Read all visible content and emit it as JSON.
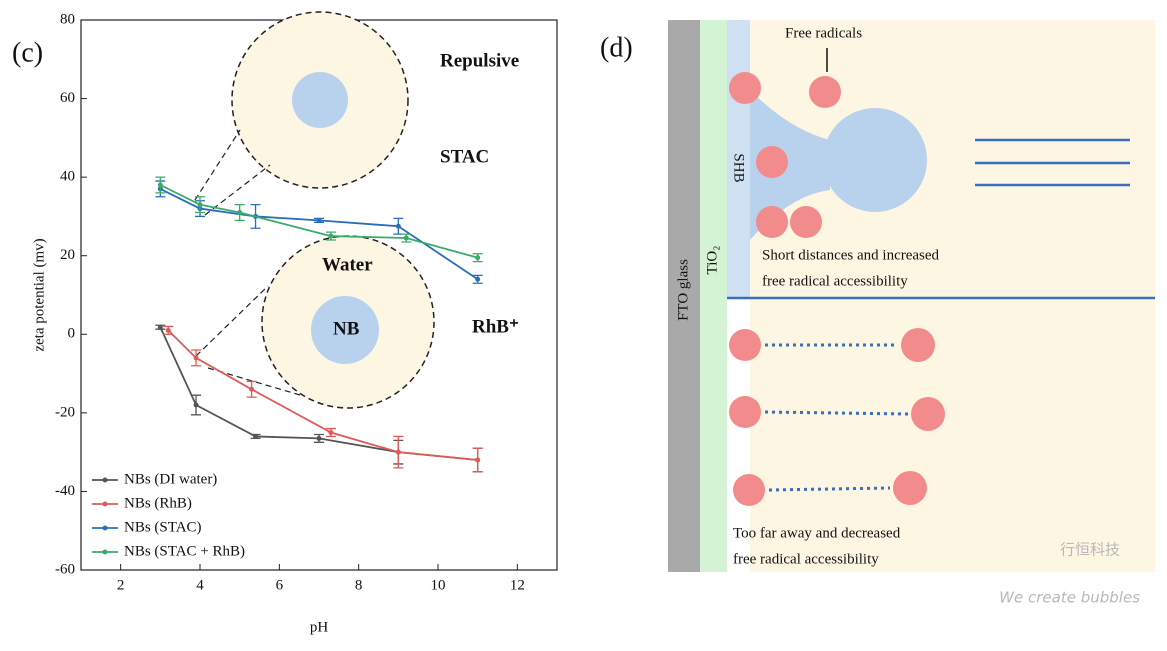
{
  "chart_data": {
    "type": "line",
    "panel_label": "(c)",
    "x_label": "pH",
    "y_label": "zeta potential (mv)",
    "xlim": [
      1,
      13
    ],
    "xticks": [
      2,
      4,
      6,
      8,
      10,
      12
    ],
    "ylim": [
      -60,
      80
    ],
    "yticks": [
      -60,
      -40,
      -20,
      0,
      20,
      40,
      60,
      80
    ],
    "legend": "lower left",
    "series": [
      {
        "name": "NBs (DI water)",
        "color": "#555555",
        "x": [
          3,
          3.9,
          5.4,
          7,
          9,
          11
        ],
        "values": [
          1.8,
          -18,
          -26,
          -26.5,
          -30,
          -32
        ],
        "errors": [
          0.5,
          2.5,
          0.5,
          1,
          3,
          3
        ]
      },
      {
        "name": "NBs (RhB)",
        "color": "#e05a5a",
        "x": [
          3.2,
          3.9,
          5.3,
          7.3,
          9,
          11
        ],
        "values": [
          1,
          -6,
          -14,
          -25,
          -30,
          -32
        ],
        "errors": [
          1,
          2,
          2,
          1,
          4,
          3
        ]
      },
      {
        "name": "NBs (STAC)",
        "color": "#2a6ebb",
        "x": [
          3,
          4,
          5.4,
          7,
          9,
          11
        ],
        "values": [
          37,
          32,
          30,
          29,
          27.5,
          14
        ],
        "errors": [
          2,
          2,
          3,
          0.5,
          2,
          1
        ]
      },
      {
        "name": "NBs (STAC + RhB)",
        "color": "#3aaa6a",
        "x": [
          3,
          4,
          5,
          7.3,
          9.2,
          11
        ],
        "values": [
          38,
          33,
          31,
          25,
          24.5,
          19.5
        ],
        "errors": [
          2,
          2,
          2,
          1,
          1,
          1
        ]
      }
    ],
    "annotations": [
      "Repulsive",
      "STAC",
      "Water",
      "NB",
      "RhB⁺"
    ]
  },
  "diagram": {
    "panel_label": "(d)",
    "free_radicals": "Free radicals",
    "shb": "SHB",
    "fto": "FTO glass",
    "tio2": "TiO₂",
    "near_text": [
      "Short distances and increased",
      "free radical accessibility"
    ],
    "far_text": [
      "Too far away and decreased",
      "free radical accessibility"
    ]
  },
  "watermark": {
    "cn": "行恒科技",
    "en": "We create bubbles"
  }
}
